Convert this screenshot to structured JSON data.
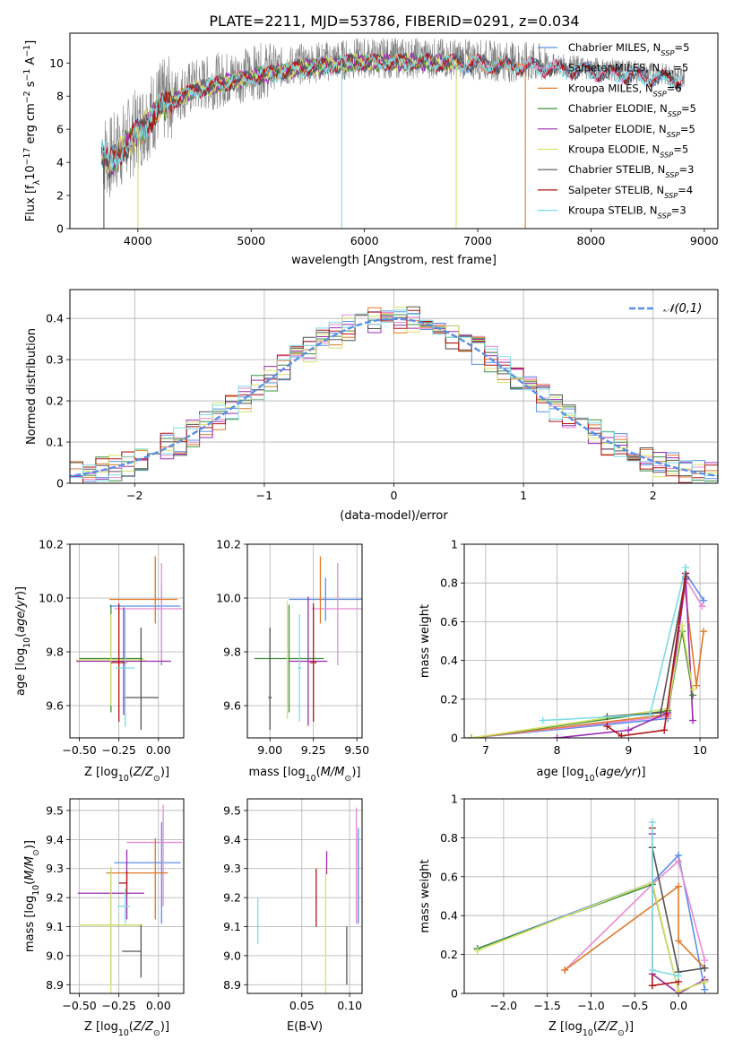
{
  "figure_title": "PLATE=2211, MJD=53786, FIBERID=0291, z=0.034",
  "legend_entries": [
    {
      "name": "Chabrier MILES",
      "nssp": "5",
      "color": "#5B8FE6"
    },
    {
      "name": "Salpeter MILES",
      "nssp": "5",
      "color": "#E88BD2"
    },
    {
      "name": "Kroupa MILES",
      "nssp": "6",
      "color": "#E07A2A"
    },
    {
      "name": "Chabrier ELODIE",
      "nssp": "5",
      "color": "#3F8F3F"
    },
    {
      "name": "Salpeter ELODIE",
      "nssp": "5",
      "color": "#9A2BB0"
    },
    {
      "name": "Kroupa ELODIE",
      "nssp": "5",
      "color": "#D8E26A"
    },
    {
      "name": "Chabrier STELIB",
      "nssp": "3",
      "color": "#555555"
    },
    {
      "name": "Salpeter STELIB",
      "nssp": "4",
      "color": "#B01515"
    },
    {
      "name": "Kroupa STELIB",
      "nssp": "3",
      "color": "#7CDCE4"
    }
  ],
  "chart_data": [
    {
      "id": "spectrum",
      "type": "line",
      "title": "PLATE=2211, MJD=53786, FIBERID=0291, z=0.034",
      "xlabel": "wavelength [Angstrom, rest frame]",
      "ylabel": "Flux [f_λ10^-17 erg cm^-2 s^-1 A^-1]",
      "xlim": [
        3400,
        9120
      ],
      "ylim": [
        0,
        11.8
      ],
      "xticks": [
        4000,
        5000,
        6000,
        7000,
        8000,
        9000
      ],
      "yticks": [
        0,
        2,
        4,
        6,
        8,
        10
      ],
      "observed_color": "#808080",
      "observed_range": [
        3690,
        8830
      ],
      "continuum": {
        "x": [
          3680,
          3750,
          3900,
          4000,
          4200,
          4500,
          5000,
          5500,
          6000,
          6500,
          7000,
          7500,
          8000,
          8500,
          8830
        ],
        "y": [
          4.8,
          4.2,
          5.3,
          6.0,
          7.6,
          8.6,
          9.4,
          10.0,
          10.3,
          10.3,
          10.2,
          10.0,
          9.7,
          9.4,
          9.2
        ]
      },
      "model_ranges": {
        "Chabrier MILES": [
          3680,
          8800
        ],
        "Salpeter MILES": [
          3680,
          8800
        ],
        "Kroupa MILES": [
          3680,
          7420
        ],
        "Chabrier ELODIE": [
          3680,
          6810
        ],
        "Salpeter ELODIE": [
          3680,
          6810
        ],
        "Kroupa ELODIE": [
          3680,
          6810
        ],
        "Chabrier STELIB": [
          3680,
          8800
        ],
        "Salpeter STELIB": [
          3680,
          8800
        ],
        "Kroupa STELIB": [
          3680,
          8800
        ]
      },
      "drop_lines": [
        {
          "x": 5800,
          "series": "Kroupa STELIB"
        },
        {
          "x": 6810,
          "series": "Kroupa ELODIE"
        },
        {
          "x": 7420,
          "series": "Kroupa MILES"
        },
        {
          "x": 3700,
          "series": "Chabrier STELIB"
        },
        {
          "x": 4000,
          "series": "Kroupa ELODIE"
        }
      ],
      "legend": "top-right",
      "grid": false
    },
    {
      "id": "residuals",
      "type": "histogram",
      "xlabel": "(data-model)/error",
      "ylabel": "Normed distribution",
      "xlim": [
        -2.5,
        2.5
      ],
      "ylim": [
        0,
        0.47
      ],
      "xticks": [
        -2,
        -1,
        0,
        1,
        2
      ],
      "yticks": [
        0.0,
        0.1,
        0.2,
        0.3,
        0.4
      ],
      "bin_width": 0.1,
      "reference_curve": {
        "label": "𝒩(0,1)",
        "color": "#5B8FE6"
      },
      "legend": "top-right",
      "grid": true
    },
    {
      "id": "age_vs_Z",
      "type": "errorbar",
      "xlabel": "Z [log10(Z/Z⊙)]",
      "ylabel": "age  [log10(age/yr)]",
      "xlim": [
        -0.56,
        0.16
      ],
      "ylim": [
        9.48,
        10.2
      ],
      "xticks": [
        -0.5,
        -0.25,
        0.0
      ],
      "xticklabels": [
        "−0.50",
        "−0.25",
        "0.00"
      ],
      "yticks": [
        9.6,
        9.8,
        10.0,
        10.2
      ],
      "yticklabels": [
        "9.6",
        "9.8",
        "10.0",
        "10.2"
      ],
      "grid": true,
      "points": [
        {
          "series": "Chabrier MILES",
          "x": 0.02,
          "y": 9.97,
          "xerr": [
            0.33,
            0.12
          ],
          "yerr": [
            0.22,
            0.08
          ]
        },
        {
          "series": "Salpeter MILES",
          "x": 0.02,
          "y": 9.96,
          "xerr": [
            0.3,
            0.13
          ],
          "yerr": [
            0.2,
            0.17
          ]
        },
        {
          "series": "Kroupa MILES",
          "x": -0.02,
          "y": 9.995,
          "xerr": [
            0.29,
            0.14
          ],
          "yerr": [
            0.09,
            0.16
          ]
        },
        {
          "series": "Chabrier ELODIE",
          "x": -0.3,
          "y": 9.775,
          "xerr": [
            0.2,
            0.2
          ],
          "yerr": [
            0.2,
            0.2
          ]
        },
        {
          "series": "Salpeter ELODIE",
          "x": -0.22,
          "y": 9.765,
          "xerr": [
            0.3,
            0.3
          ],
          "yerr": [
            0.2,
            0.2
          ]
        },
        {
          "series": "Kroupa ELODIE",
          "x": -0.3,
          "y": 9.77,
          "xerr": [
            0.22,
            0.22
          ],
          "yerr": [
            0.17,
            0.17
          ]
        },
        {
          "series": "Chabrier STELIB",
          "x": -0.11,
          "y": 9.63,
          "xerr": [
            0.11,
            0.11
          ],
          "yerr": [
            0.12,
            0.26
          ]
        },
        {
          "series": "Salpeter STELIB",
          "x": -0.25,
          "y": 9.76,
          "xerr": [
            0.05,
            0.05
          ],
          "yerr": [
            0.22,
            0.22
          ]
        },
        {
          "series": "Kroupa STELIB",
          "x": -0.21,
          "y": 9.74,
          "xerr": [
            0.06,
            0.06
          ],
          "yerr": [
            0.22,
            0.22
          ]
        }
      ]
    },
    {
      "id": "age_vs_mass",
      "type": "errorbar",
      "xlabel": "mass [log10(M/M⊙)]",
      "ylabel": "",
      "xlim": [
        8.87,
        9.53
      ],
      "ylim": [
        9.48,
        10.2
      ],
      "xticks": [
        9.0,
        9.25,
        9.5
      ],
      "xticklabels": [
        "9.00",
        "9.25",
        "9.50"
      ],
      "yticks": [
        9.6,
        9.8,
        10.0,
        10.2
      ],
      "yticklabels": [
        "9.6",
        "9.8",
        "10.0",
        "10.2"
      ],
      "grid": true,
      "points": [
        {
          "series": "Chabrier MILES",
          "x": 9.32,
          "y": 9.995,
          "xerr": [
            0.21,
            0.21
          ],
          "yerr": [
            0.08,
            0.08
          ]
        },
        {
          "series": "Salpeter MILES",
          "x": 9.39,
          "y": 9.96,
          "xerr": [
            0.15,
            0.15
          ],
          "yerr": [
            0.21,
            0.17
          ]
        },
        {
          "series": "Kroupa MILES",
          "x": 9.29,
          "y": 9.995,
          "xerr": [
            0.01,
            0.01
          ],
          "yerr": [
            0.09,
            0.16
          ]
        },
        {
          "series": "Chabrier ELODIE",
          "x": 9.11,
          "y": 9.775,
          "xerr": [
            0.2,
            0.2
          ],
          "yerr": [
            0.2,
            0.2
          ]
        },
        {
          "series": "Salpeter ELODIE",
          "x": 9.22,
          "y": 9.765,
          "xerr": [
            0.11,
            0.11
          ],
          "yerr": [
            0.24,
            0.24
          ]
        },
        {
          "series": "Kroupa ELODIE",
          "x": 9.1,
          "y": 9.77,
          "xerr": [
            0.0,
            0.0
          ],
          "yerr": [
            0.22,
            0.22
          ]
        },
        {
          "series": "Chabrier STELIB",
          "x": 9.0,
          "y": 9.63,
          "xerr": [
            0.01,
            0.01
          ],
          "yerr": [
            0.12,
            0.26
          ]
        },
        {
          "series": "Salpeter STELIB",
          "x": 9.25,
          "y": 9.76,
          "xerr": [
            0.02,
            0.02
          ],
          "yerr": [
            0.22,
            0.22
          ]
        },
        {
          "series": "Kroupa STELIB",
          "x": 9.17,
          "y": 9.74,
          "xerr": [
            0.01,
            0.01
          ],
          "yerr": [
            0.2,
            0.2
          ]
        }
      ]
    },
    {
      "id": "massweight_vs_age",
      "type": "line",
      "xlabel": "age  [log10(age/yr)]",
      "ylabel": "mass weight",
      "xlim": [
        6.7,
        10.25
      ],
      "ylim": [
        0,
        1.0
      ],
      "xticks": [
        7,
        8,
        9,
        10
      ],
      "yticks": [
        0.0,
        0.2,
        0.4,
        0.6,
        0.8,
        1.0
      ],
      "grid": true,
      "series": [
        {
          "name": "Chabrier MILES",
          "x": [
            6.8,
            9.55,
            9.8,
            10.05
          ],
          "y": [
            0.0,
            0.1,
            0.85,
            0.71
          ]
        },
        {
          "name": "Salpeter MILES",
          "x": [
            6.8,
            9.55,
            9.8,
            10.03
          ],
          "y": [
            0.0,
            0.11,
            0.82,
            0.68
          ]
        },
        {
          "name": "Kroupa MILES",
          "x": [
            6.8,
            9.55,
            9.78,
            9.95,
            10.05
          ],
          "y": [
            0.0,
            0.12,
            0.8,
            0.27,
            0.55
          ]
        },
        {
          "name": "Chabrier ELODIE",
          "x": [
            6.8,
            9.55,
            9.75,
            9.9
          ],
          "y": [
            0.0,
            0.14,
            0.55,
            0.22
          ]
        },
        {
          "name": "Salpeter ELODIE",
          "x": [
            8.0,
            9.0,
            9.55,
            9.8,
            9.9
          ],
          "y": [
            0.0,
            0.04,
            0.13,
            0.82,
            0.09
          ]
        },
        {
          "name": "Kroupa ELODIE",
          "x": [
            6.8,
            9.55,
            9.75,
            9.9
          ],
          "y": [
            0.0,
            0.15,
            0.58,
            0.25
          ]
        },
        {
          "name": "Chabrier STELIB",
          "x": [
            8.7,
            9.45,
            9.8
          ],
          "y": [
            0.11,
            0.13,
            0.83
          ]
        },
        {
          "name": "Salpeter STELIB",
          "x": [
            8.7,
            8.9,
            9.5,
            9.8
          ],
          "y": [
            0.06,
            0.01,
            0.04,
            0.85
          ]
        },
        {
          "name": "Kroupa STELIB",
          "x": [
            7.8,
            9.3,
            9.8
          ],
          "y": [
            0.09,
            0.12,
            0.88
          ]
        }
      ]
    },
    {
      "id": "mass_vs_Z",
      "type": "errorbar",
      "xlabel": "Z [log10(Z/Z⊙)]",
      "ylabel": "mass [log10(M/M⊙)]",
      "xlim": [
        -0.56,
        0.16
      ],
      "ylim": [
        8.87,
        9.54
      ],
      "xticks": [
        -0.5,
        -0.25,
        0.0
      ],
      "xticklabels": [
        "−0.50",
        "−0.25",
        "0.00"
      ],
      "yticks": [
        8.9,
        9.0,
        9.1,
        9.2,
        9.3,
        9.4,
        9.5
      ],
      "yticklabels": [
        "8.9",
        "9.0",
        "9.1",
        "9.2",
        "9.3",
        "9.4",
        "9.5"
      ],
      "grid": true,
      "points": [
        {
          "series": "Chabrier MILES",
          "x": 0.02,
          "y": 9.32,
          "xerr": [
            0.3,
            0.12
          ],
          "yerr": [
            0.21,
            0.14
          ]
        },
        {
          "series": "Salpeter MILES",
          "x": 0.03,
          "y": 9.39,
          "xerr": [
            0.23,
            0.12
          ],
          "yerr": [
            0.22,
            0.13
          ]
        },
        {
          "series": "Kroupa MILES",
          "x": -0.02,
          "y": 9.285,
          "xerr": [
            0.31,
            0.08
          ],
          "yerr": [
            0.16,
            0.12
          ]
        },
        {
          "series": "Chabrier ELODIE",
          "x": -0.3,
          "y": 9.105,
          "xerr": [
            0.2,
            0.2
          ],
          "yerr": [
            0.2,
            0.2
          ]
        },
        {
          "series": "Salpeter ELODIE",
          "x": -0.2,
          "y": 9.215,
          "xerr": [
            0.31,
            0.11
          ],
          "yerr": [
            0.09,
            0.15
          ]
        },
        {
          "series": "Kroupa ELODIE",
          "x": -0.3,
          "y": 9.105,
          "xerr": [
            0.2,
            0.2
          ],
          "yerr": [
            0.26,
            0.2
          ]
        },
        {
          "series": "Chabrier STELIB",
          "x": -0.11,
          "y": 9.015,
          "xerr": [
            0.12,
            0.0
          ],
          "yerr": [
            0.09,
            0.09
          ]
        },
        {
          "series": "Salpeter STELIB",
          "x": -0.2,
          "y": 9.25,
          "xerr": [
            0.05,
            0.0
          ],
          "yerr": [
            0.04,
            0.04
          ]
        },
        {
          "series": "Kroupa STELIB",
          "x": -0.21,
          "y": 9.17,
          "xerr": [
            0.05,
            0.03
          ],
          "yerr": [
            0.06,
            0.06
          ]
        }
      ]
    },
    {
      "id": "mass_vs_ebv",
      "type": "errorbar",
      "xlabel": "E(B-V)",
      "ylabel": "",
      "xlim": [
        -0.007,
        0.113
      ],
      "ylim": [
        8.87,
        9.54
      ],
      "xticks": [
        0.05,
        0.1
      ],
      "xticklabels": [
        "0.05",
        "0.10"
      ],
      "yticks": [
        8.9,
        9.0,
        9.1,
        9.2,
        9.3,
        9.4,
        9.5
      ],
      "yticklabels": [
        "8.9",
        "9.0",
        "9.1",
        "9.2",
        "9.3",
        "9.4",
        "9.5"
      ],
      "grid": true,
      "points": [
        {
          "series": "Salpeter MILES",
          "x": 0.107,
          "y": 9.39,
          "yerr": [
            0.28,
            0.12
          ]
        },
        {
          "series": "Kroupa MILES",
          "x": 0.109,
          "y": 9.285,
          "yerr": [
            0.17,
            0.12
          ]
        },
        {
          "series": "Chabrier MILES",
          "x": 0.109,
          "y": 9.32,
          "yerr": [
            0.21,
            0.12
          ]
        },
        {
          "series": "Salpeter ELODIE",
          "x": 0.076,
          "y": 9.32,
          "yerr": [
            0.04,
            0.04
          ]
        },
        {
          "series": "Kroupa ELODIE",
          "x": 0.075,
          "y": 9.1,
          "yerr": [
            0.25,
            0.2
          ]
        },
        {
          "series": "Chabrier STELIB",
          "x": 0.097,
          "y": 9.0,
          "yerr": [
            0.1,
            0.1
          ]
        },
        {
          "series": "Salpeter STELIB",
          "x": 0.065,
          "y": 9.2,
          "yerr": [
            0.1,
            0.1
          ]
        },
        {
          "series": "Kroupa STELIB",
          "x": 0.004,
          "y": 9.12,
          "yerr": [
            0.08,
            0.08
          ]
        }
      ]
    },
    {
      "id": "massweight_vs_Z",
      "type": "line",
      "xlabel": "Z [log10(Z/Z⊙)]",
      "ylabel": "mass weight",
      "xlim": [
        -2.45,
        0.45
      ],
      "ylim": [
        0,
        1.0
      ],
      "xticks": [
        -2.0,
        -1.5,
        -1.0,
        -0.5,
        0.0
      ],
      "xticklabels": [
        "−2.0",
        "−1.5",
        "−1.0",
        "−0.5",
        "0.0"
      ],
      "yticks": [
        0.0,
        0.2,
        0.4,
        0.6,
        0.8,
        1.0
      ],
      "grid": true,
      "series": [
        {
          "name": "Chabrier MILES",
          "x": [
            -2.3,
            -0.3,
            0.0,
            0.3
          ],
          "y": [
            0.23,
            0.57,
            0.71,
            0.02
          ]
        },
        {
          "name": "Salpeter MILES",
          "x": [
            -1.3,
            -0.3,
            0.0,
            0.3
          ],
          "y": [
            0.12,
            0.56,
            0.68,
            0.17
          ]
        },
        {
          "name": "Kroupa MILES",
          "x": [
            -1.3,
            0.0,
            0.0,
            0.3
          ],
          "y": [
            0.12,
            0.55,
            0.27,
            0.13
          ]
        },
        {
          "name": "Chabrier ELODIE",
          "x": [
            -2.3,
            -0.3,
            0.0,
            0.3
          ],
          "y": [
            0.23,
            0.56,
            0.01,
            0.06
          ]
        },
        {
          "name": "Salpeter ELODIE",
          "x": [
            -0.3,
            -0.3,
            0.0,
            0.3
          ],
          "y": [
            0.82,
            0.1,
            0.0,
            0.07
          ]
        },
        {
          "name": "Kroupa ELODIE",
          "x": [
            -2.3,
            -0.3,
            0.0,
            0.3
          ],
          "y": [
            0.22,
            0.57,
            0.01,
            0.06
          ]
        },
        {
          "name": "Chabrier STELIB",
          "x": [
            -0.3,
            0.0,
            0.3
          ],
          "y": [
            0.75,
            0.11,
            0.13
          ]
        },
        {
          "name": "Salpeter STELIB",
          "x": [
            -0.3,
            -0.3,
            0.0
          ],
          "y": [
            0.85,
            0.04,
            0.06
          ]
        },
        {
          "name": "Kroupa STELIB",
          "x": [
            -0.3,
            -0.3,
            0.0
          ],
          "y": [
            0.88,
            0.12,
            0.09
          ]
        }
      ]
    }
  ]
}
